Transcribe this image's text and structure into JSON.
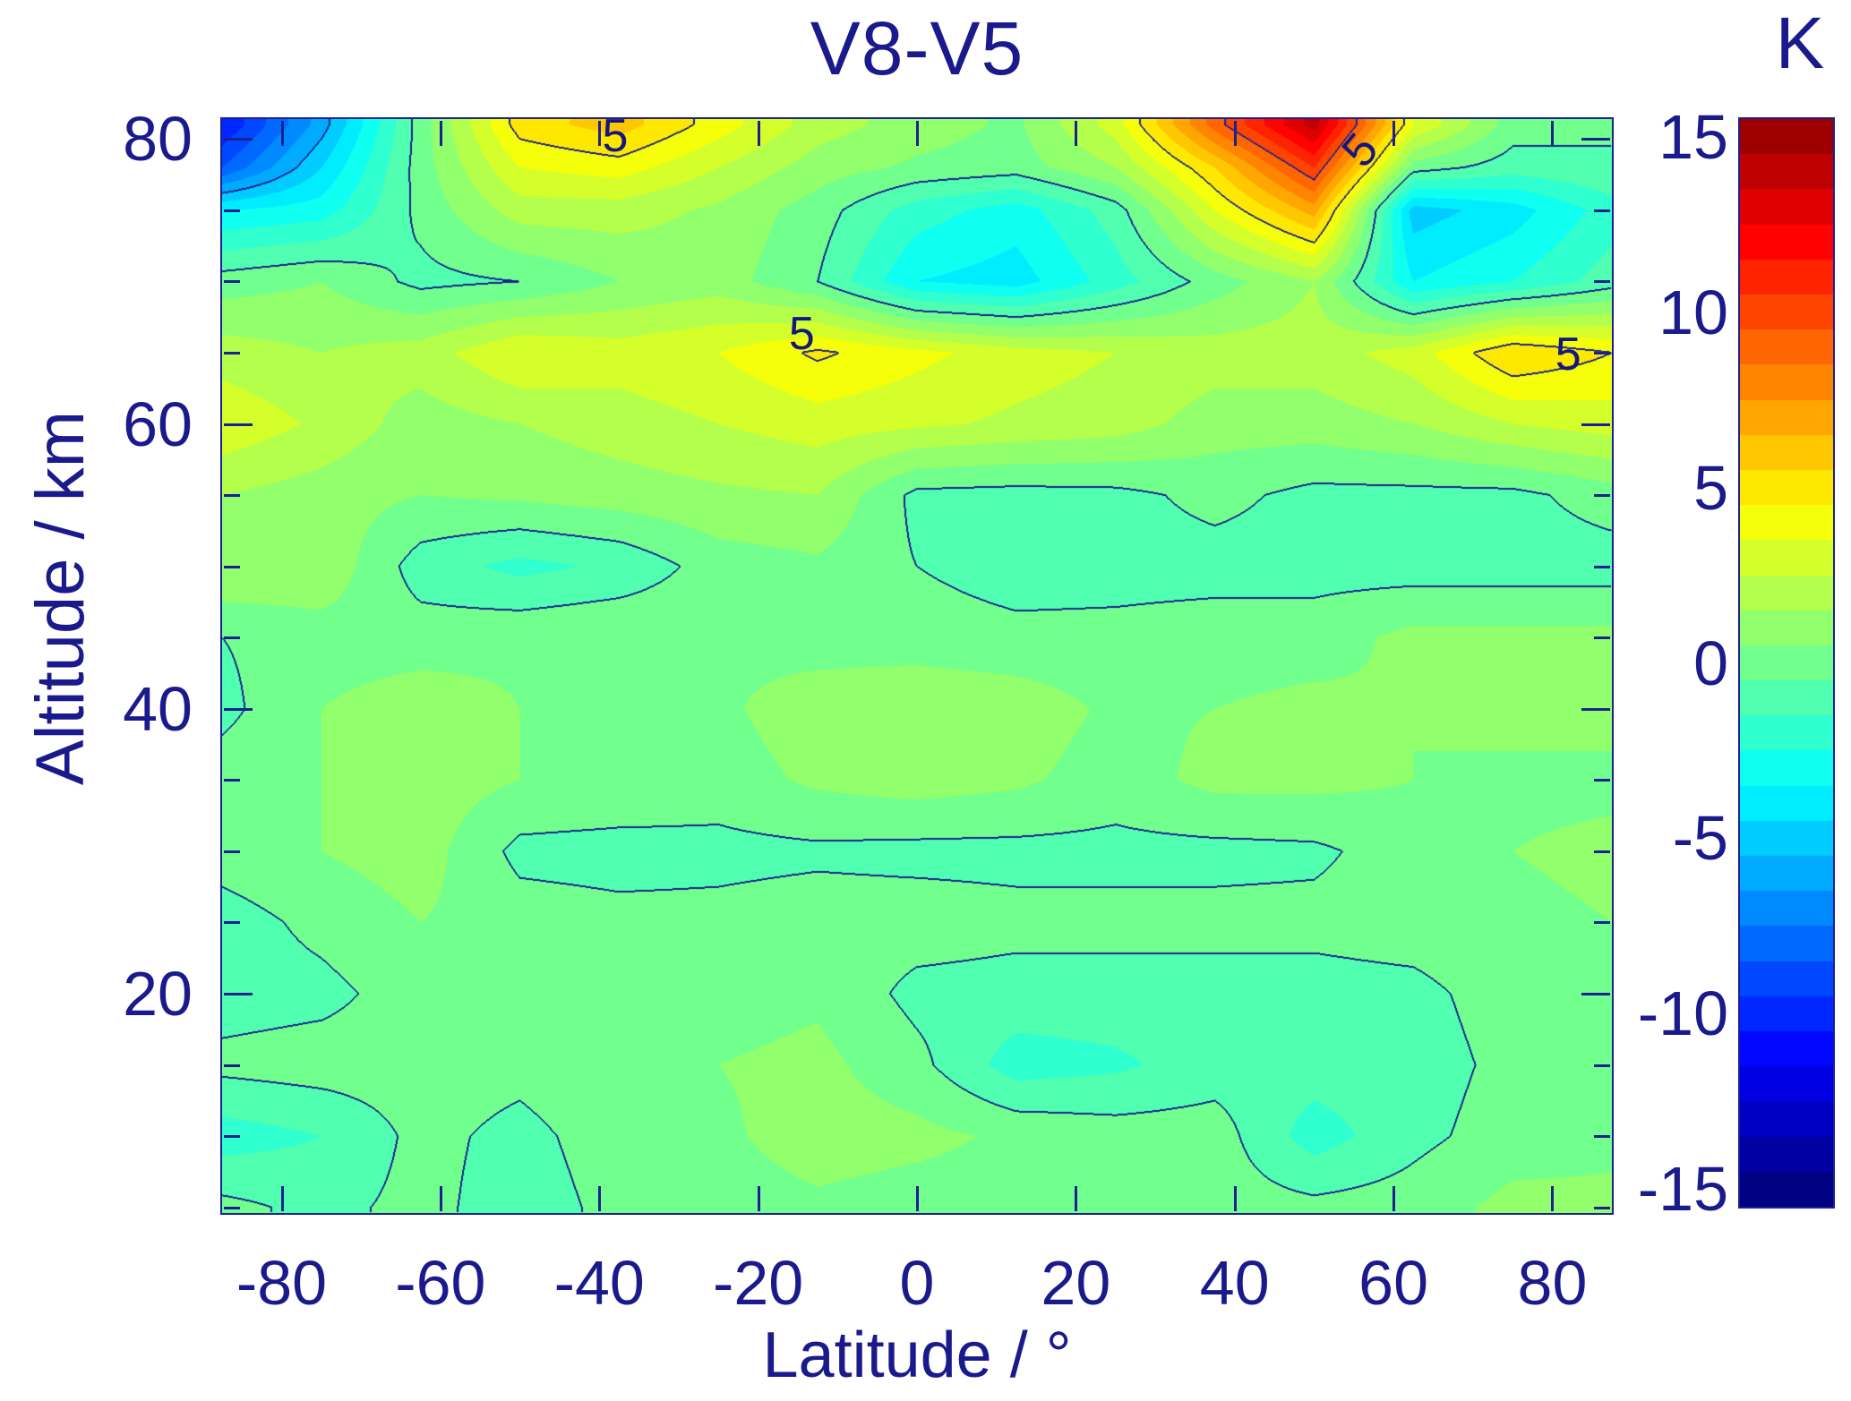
{
  "title": "V8-V5",
  "axes": {
    "xlabel": "Latitude / °",
    "ylabel": "Altitude / km",
    "x_ticks": [
      -80,
      -60,
      -40,
      -20,
      0,
      20,
      40,
      60,
      80
    ],
    "y_major_ticks": [
      20,
      40,
      60,
      80
    ],
    "y_minor_step": 5,
    "x_range": [
      -87.5,
      87.5
    ],
    "y_range": [
      4.6,
      81.4
    ]
  },
  "colorbar": {
    "label": "K",
    "ticks": [
      15,
      10,
      5,
      0,
      -5,
      -10,
      -15
    ],
    "range": [
      -15.5,
      15.5
    ],
    "band_size": 1
  },
  "colors": {
    "text": "#1a1a8c",
    "contour_line": "#1c2490",
    "frame": "#1c2090"
  },
  "chart_data": {
    "type": "heatmap",
    "title": "V8-V5",
    "xlabel": "Latitude / °",
    "ylabel": "Altitude / km",
    "units": "K",
    "value_range": [
      -15.5,
      15.5
    ],
    "contour_fill_step": 1,
    "contour_line_levels": [
      -10,
      -5,
      0,
      5,
      10
    ],
    "lat": [
      -87.5,
      -75,
      -62.5,
      -50,
      -37.5,
      -25,
      -12.5,
      0,
      12.5,
      25,
      37.5,
      50,
      62.5,
      75,
      87.5
    ],
    "alt": [
      81,
      78,
      75,
      70,
      65,
      60,
      55,
      50,
      45,
      40,
      35,
      30,
      25,
      20,
      15,
      10,
      5
    ],
    "values": [
      [
        -10.0,
        -5.5,
        0.5,
        5.5,
        6.5,
        4.5,
        2.5,
        1.5,
        0.8,
        3.5,
        9.5,
        14.5,
        4.0,
        0.5,
        0.0
      ],
      [
        -8.0,
        -4.0,
        0.5,
        4.0,
        4.5,
        3.0,
        1.5,
        0.8,
        0.5,
        2.0,
        6.0,
        11.0,
        0.5,
        -0.5,
        0.0
      ],
      [
        -3.0,
        -2.5,
        0.3,
        2.5,
        2.5,
        1.8,
        0.5,
        -1.5,
        -2.5,
        -0.5,
        4.0,
        7.5,
        -4.5,
        -3.5,
        -1.5
      ],
      [
        0.5,
        1.0,
        -0.3,
        0.0,
        1.0,
        1.5,
        0.0,
        -3.0,
        -3.5,
        -1.5,
        0.5,
        2.0,
        -3.0,
        -2.0,
        -0.5
      ],
      [
        2.5,
        2.0,
        2.5,
        4.0,
        3.5,
        4.0,
        5.2,
        4.3,
        3.5,
        3.0,
        2.5,
        2.5,
        3.5,
        6.0,
        5.0
      ],
      [
        3.8,
        2.8,
        1.5,
        2.0,
        2.5,
        3.0,
        3.5,
        3.2,
        2.8,
        2.5,
        1.5,
        1.5,
        2.0,
        3.0,
        3.5
      ],
      [
        2.0,
        1.5,
        1.0,
        1.2,
        1.5,
        1.8,
        2.0,
        -0.3,
        -0.4,
        -0.3,
        0.3,
        -0.3,
        -0.3,
        -0.3,
        0.5
      ],
      [
        2.0,
        1.8,
        -0.5,
        -1.3,
        -0.8,
        0.5,
        0.8,
        0.0,
        -0.5,
        -0.4,
        -0.4,
        -0.4,
        -0.5,
        -0.5,
        -0.5
      ],
      [
        0.0,
        0.5,
        0.5,
        0.8,
        1.0,
        0.8,
        0.5,
        0.5,
        0.3,
        0.3,
        0.5,
        0.5,
        1.3,
        1.3,
        1.3
      ],
      [
        -0.3,
        1.0,
        1.6,
        1.0,
        1.0,
        0.8,
        1.6,
        1.8,
        1.6,
        0.8,
        1.0,
        1.3,
        1.0,
        1.3,
        1.3
      ],
      [
        0.5,
        1.0,
        1.6,
        1.0,
        0.8,
        0.5,
        1.2,
        1.5,
        1.2,
        0.5,
        1.3,
        1.3,
        1.0,
        0.8,
        0.8
      ],
      [
        0.5,
        1.0,
        1.5,
        -0.3,
        -0.4,
        -0.3,
        -0.2,
        -0.3,
        -0.3,
        -0.3,
        -0.3,
        -0.2,
        0.5,
        1.0,
        1.2
      ],
      [
        -0.5,
        0.3,
        1.0,
        0.5,
        0.3,
        0.3,
        0.5,
        0.5,
        0.3,
        0.3,
        0.3,
        0.3,
        0.5,
        0.8,
        1.0
      ],
      [
        -0.5,
        -0.3,
        0.5,
        0.5,
        0.3,
        0.5,
        0.8,
        -0.3,
        -0.4,
        -0.4,
        -0.4,
        -0.4,
        -0.3,
        0.5,
        0.8
      ],
      [
        0.3,
        0.5,
        0.5,
        0.3,
        0.8,
        1.0,
        1.3,
        0.3,
        -1.5,
        -1.2,
        -0.5,
        -0.5,
        -0.5,
        0.3,
        0.5
      ],
      [
        -1.5,
        -1.0,
        0.3,
        -0.3,
        0.5,
        0.8,
        1.5,
        1.3,
        0.8,
        0.5,
        0.5,
        -1.5,
        -0.3,
        0.5,
        0.8
      ],
      [
        0.3,
        -0.3,
        0.3,
        -0.5,
        0.3,
        0.5,
        0.8,
        0.5,
        0.5,
        0.5,
        0.5,
        0.3,
        0.5,
        1.3,
        1.2
      ]
    ],
    "contour_labels": [
      {
        "text": "5",
        "lat": -38.0,
        "alt": 80.2,
        "rotation": 0
      },
      {
        "text": "5",
        "lat": -14.5,
        "alt": 66.3,
        "rotation": 0
      },
      {
        "text": "5",
        "lat": 55.8,
        "alt": 79.2,
        "rotation": -50
      },
      {
        "text": "5",
        "lat": 82.0,
        "alt": 64.9,
        "rotation": 0
      }
    ]
  }
}
